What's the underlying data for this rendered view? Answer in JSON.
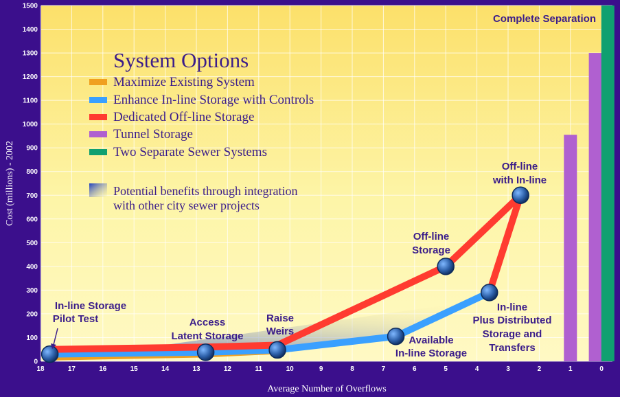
{
  "chart_data": {
    "type": "line",
    "title": "",
    "xlabel": "Average Number of Overflows",
    "ylabel": "Cost (millions) - 2002",
    "xlim": [
      18,
      0
    ],
    "ylim": [
      0,
      1500
    ],
    "x_ticks": [
      18,
      17,
      16,
      15,
      14,
      13,
      12,
      11,
      10,
      9,
      8,
      7,
      6,
      5,
      4,
      3,
      2,
      1,
      0
    ],
    "y_ticks": [
      0,
      100,
      200,
      300,
      400,
      500,
      600,
      700,
      800,
      900,
      1000,
      1100,
      1200,
      1300,
      1400,
      1500
    ],
    "legend": {
      "title": "System Options",
      "position": "top-left",
      "items": [
        {
          "label": "Maximize Existing System",
          "color": "#f0a020"
        },
        {
          "label": "Enhance In-line Storage with Controls",
          "color": "#3aa0ff"
        },
        {
          "label": "Dedicated Off-line Storage",
          "color": "#ff3b30"
        },
        {
          "label": "Tunnel Storage",
          "color": "#b060d0"
        },
        {
          "label": "Two Separate Sewer Systems",
          "color": "#10a070"
        }
      ],
      "integration_note": "Potential benefits through integration with other city sewer projects"
    },
    "series": [
      {
        "name": "Maximize Existing System",
        "color": "#f0a020",
        "x": [
          17.7,
          12.7,
          10.4
        ],
        "y": [
          15,
          28,
          42
        ]
      },
      {
        "name": "Enhance In-line Storage with Controls",
        "color": "#3aa0ff",
        "x": [
          17.7,
          12.7,
          10.4,
          6.6,
          3.6
        ],
        "y": [
          30,
          38,
          48,
          105,
          290
        ]
      },
      {
        "name": "Dedicated Off-line Storage",
        "color": "#ff3b30",
        "x": [
          17.7,
          12.7,
          10.4,
          5.0,
          2.6,
          3.6
        ],
        "y": [
          50,
          60,
          68,
          400,
          700,
          290
        ]
      },
      {
        "name": "Tunnel Storage",
        "color": "#b060d0",
        "bars": [
          {
            "x": 1,
            "value": 955
          },
          {
            "x": 0.2,
            "value": 1300
          }
        ]
      },
      {
        "name": "Two Separate Sewer Systems",
        "color": "#10a070",
        "bars": [
          {
            "x": -0.2,
            "value": 1500
          }
        ]
      }
    ],
    "points": [
      {
        "label": "In-line Storage Pilot Test",
        "x": 17.7,
        "y": 30
      },
      {
        "label": "Access Latent Storage",
        "x": 12.7,
        "y": 38
      },
      {
        "label": "Raise Weirs",
        "x": 10.4,
        "y": 48
      },
      {
        "label": "Available In-line Storage",
        "x": 6.6,
        "y": 105
      },
      {
        "label": "Off-line Storage",
        "x": 5.0,
        "y": 400
      },
      {
        "label": "In-line Plus Distributed Storage and Transfers",
        "x": 3.6,
        "y": 290
      },
      {
        "label": "Off-line with In-line",
        "x": 2.6,
        "y": 700
      }
    ],
    "annotations": {
      "complete_separation": "Complete Separation",
      "pilot_line1": "In-line Storage",
      "pilot_line2": "Pilot Test",
      "access_line1": "Access",
      "access_line2": "Latent Storage",
      "weirs_line1": "Raise",
      "weirs_line2": "Weirs",
      "available_line1": "Available",
      "available_line2": "In-line Storage",
      "offline_line1": "Off-line",
      "offline_line2": "Storage",
      "offin_line1": "Off-line",
      "offin_line2": "with In-line",
      "dist_line1": "In-line",
      "dist_line2": "Plus Distributed",
      "dist_line3": "Storage and",
      "dist_line4": "Transfers"
    }
  }
}
